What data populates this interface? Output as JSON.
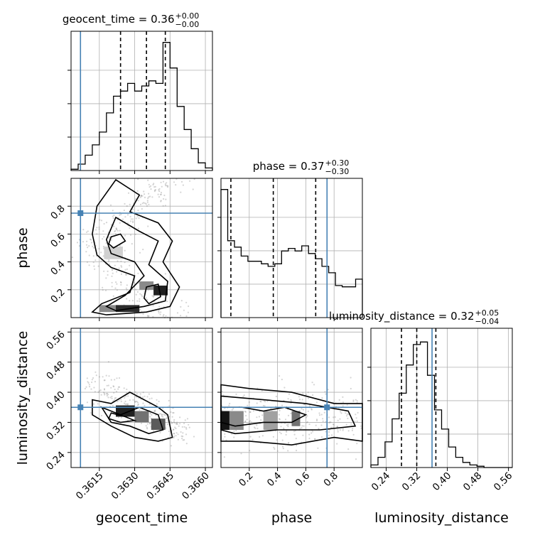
{
  "chart_data": {
    "type": "corner",
    "grid": true,
    "truth_color": "#4682b4",
    "parameters": [
      "geocent_time",
      "phase",
      "luminosity_distance"
    ],
    "truths": {
      "geocent_time": 0.3607,
      "phase": 0.75,
      "luminosity_distance": 0.36
    },
    "titles": {
      "geocent_time": {
        "base": "geocent_time = 0.36",
        "plus": "+0.00",
        "minus": "−0.00"
      },
      "phase": {
        "base": "phase = 0.37",
        "plus": "+0.30",
        "minus": "−0.30"
      },
      "luminosity_distance": {
        "base": "luminosity_distance = 0.32",
        "plus": "+0.05",
        "minus": "−0.04"
      }
    },
    "labels": {
      "geocent_time": "geocent_time",
      "phase": "phase",
      "luminosity_distance": "luminosity_distance"
    },
    "ranges": {
      "geocent_time": [
        0.3603,
        0.3663
      ],
      "phase": [
        0.0,
        1.0
      ],
      "luminosity_distance": [
        0.2,
        0.57
      ]
    },
    "ticks": {
      "geocent_time": [
        "0.3615",
        "0.3630",
        "0.3645",
        "0.3660"
      ],
      "phase": [
        "0.2",
        "0.4",
        "0.6",
        "0.8"
      ],
      "phase_x": [
        "0.2",
        "0.4",
        "0.6",
        "0.8"
      ],
      "luminosity_distance": [
        "0.24",
        "0.32",
        "0.40",
        "0.48",
        "0.56"
      ]
    },
    "quantiles": {
      "geocent_time": [
        0.3624,
        0.3635,
        0.3643
      ],
      "phase": [
        0.07,
        0.37,
        0.67
      ],
      "luminosity_distance": [
        0.28,
        0.32,
        0.37
      ]
    },
    "histograms": {
      "geocent_time": [
        0.01,
        0.05,
        0.12,
        0.2,
        0.3,
        0.45,
        0.58,
        0.62,
        0.68,
        0.62,
        0.66,
        0.7,
        0.68,
        1.0,
        0.8,
        0.5,
        0.32,
        0.17,
        0.06,
        0.02
      ],
      "phase": [
        1.0,
        0.6,
        0.55,
        0.48,
        0.44,
        0.44,
        0.42,
        0.4,
        0.42,
        0.52,
        0.54,
        0.52,
        0.56,
        0.5,
        0.46,
        0.4,
        0.35,
        0.25,
        0.24,
        0.24,
        0.3
      ],
      "luminosity_distance": [
        0.02,
        0.08,
        0.2,
        0.38,
        0.58,
        0.8,
        0.96,
        0.98,
        0.72,
        0.45,
        0.3,
        0.16,
        0.08,
        0.04,
        0.02,
        0.01,
        0.0,
        0.0,
        0.0,
        0.0
      ]
    },
    "contours_geocent_phase": [
      [
        [
          0.3618,
          0.02
        ],
        [
          0.3635,
          0.04
        ],
        [
          0.3645,
          0.08
        ],
        [
          0.3649,
          0.22
        ],
        [
          0.3642,
          0.4
        ],
        [
          0.3646,
          0.55
        ],
        [
          0.364,
          0.68
        ],
        [
          0.3628,
          0.76
        ],
        [
          0.3632,
          0.88
        ],
        [
          0.3622,
          0.99
        ],
        [
          0.3614,
          0.8
        ],
        [
          0.3612,
          0.6
        ],
        [
          0.3614,
          0.45
        ],
        [
          0.362,
          0.36
        ],
        [
          0.363,
          0.3
        ],
        [
          0.3628,
          0.18
        ],
        [
          0.3616,
          0.1
        ],
        [
          0.3612,
          0.04
        ]
      ],
      [
        [
          0.3622,
          0.05
        ],
        [
          0.3634,
          0.08
        ],
        [
          0.3643,
          0.12
        ],
        [
          0.3644,
          0.26
        ],
        [
          0.3636,
          0.38
        ],
        [
          0.364,
          0.55
        ],
        [
          0.3632,
          0.62
        ],
        [
          0.3622,
          0.72
        ],
        [
          0.3618,
          0.56
        ],
        [
          0.362,
          0.46
        ],
        [
          0.363,
          0.4
        ],
        [
          0.3634,
          0.3
        ],
        [
          0.3626,
          0.16
        ],
        [
          0.3618,
          0.08
        ]
      ],
      [
        [
          0.3636,
          0.1
        ],
        [
          0.3641,
          0.15
        ],
        [
          0.364,
          0.24
        ],
        [
          0.3635,
          0.22
        ],
        [
          0.3634,
          0.14
        ]
      ],
      [
        [
          0.3621,
          0.5
        ],
        [
          0.3626,
          0.55
        ],
        [
          0.3624,
          0.6
        ],
        [
          0.362,
          0.58
        ],
        [
          0.3619,
          0.53
        ]
      ]
    ],
    "contours_geocent_dist": [
      [
        [
          0.3612,
          0.38
        ],
        [
          0.362,
          0.37
        ],
        [
          0.3628,
          0.4
        ],
        [
          0.364,
          0.36
        ],
        [
          0.3644,
          0.34
        ],
        [
          0.3646,
          0.28
        ],
        [
          0.364,
          0.27
        ],
        [
          0.363,
          0.28
        ],
        [
          0.362,
          0.31
        ],
        [
          0.3612,
          0.34
        ]
      ],
      [
        [
          0.3616,
          0.36
        ],
        [
          0.3624,
          0.34
        ],
        [
          0.3632,
          0.36
        ],
        [
          0.364,
          0.34
        ],
        [
          0.3642,
          0.3
        ],
        [
          0.3636,
          0.29
        ],
        [
          0.3628,
          0.31
        ],
        [
          0.362,
          0.32
        ]
      ],
      [
        [
          0.362,
          0.345
        ],
        [
          0.3626,
          0.335
        ],
        [
          0.363,
          0.325
        ],
        [
          0.3624,
          0.32
        ],
        [
          0.3619,
          0.33
        ]
      ]
    ],
    "contours_phase_dist": [
      [
        [
          0.0,
          0.42
        ],
        [
          0.2,
          0.41
        ],
        [
          0.5,
          0.4
        ],
        [
          0.8,
          0.37
        ],
        [
          1.0,
          0.37
        ],
        [
          1.0,
          0.27
        ],
        [
          0.8,
          0.28
        ],
        [
          0.5,
          0.26
        ],
        [
          0.2,
          0.27
        ],
        [
          0.0,
          0.27
        ]
      ],
      [
        [
          0.0,
          0.39
        ],
        [
          0.3,
          0.38
        ],
        [
          0.6,
          0.37
        ],
        [
          0.9,
          0.35
        ],
        [
          0.95,
          0.31
        ],
        [
          0.7,
          0.3
        ],
        [
          0.4,
          0.3
        ],
        [
          0.1,
          0.29
        ],
        [
          0.0,
          0.3
        ]
      ],
      [
        [
          0.0,
          0.36
        ],
        [
          0.15,
          0.36
        ],
        [
          0.3,
          0.35
        ],
        [
          0.45,
          0.36
        ],
        [
          0.6,
          0.34
        ],
        [
          0.5,
          0.32
        ],
        [
          0.3,
          0.32
        ],
        [
          0.1,
          0.31
        ],
        [
          0.0,
          0.32
        ]
      ]
    ],
    "density_cells": [
      {
        "panel": "geocent_phase",
        "x": 0.3622,
        "y": 0.04,
        "w": 0.001,
        "h": 0.05,
        "v": 0.9
      },
      {
        "panel": "geocent_phase",
        "x": 0.3615,
        "y": 0.04,
        "w": 0.0007,
        "h": 0.05,
        "v": 0.5
      },
      {
        "panel": "geocent_phase",
        "x": 0.3638,
        "y": 0.16,
        "w": 0.0006,
        "h": 0.07,
        "v": 0.95
      },
      {
        "panel": "geocent_phase",
        "x": 0.3632,
        "y": 0.2,
        "w": 0.0006,
        "h": 0.06,
        "v": 0.5
      },
      {
        "panel": "geocent_phase",
        "x": 0.3617,
        "y": 0.42,
        "w": 0.0008,
        "h": 0.09,
        "v": 0.2
      },
      {
        "panel": "geocent_dist",
        "x": 0.3622,
        "y": 0.335,
        "w": 0.0008,
        "h": 0.03,
        "v": 0.95
      },
      {
        "panel": "geocent_dist",
        "x": 0.363,
        "y": 0.32,
        "w": 0.0006,
        "h": 0.03,
        "v": 0.6
      },
      {
        "panel": "geocent_dist",
        "x": 0.3637,
        "y": 0.3,
        "w": 0.0006,
        "h": 0.03,
        "v": 0.7
      },
      {
        "panel": "phase_dist",
        "x": 0.0,
        "y": 0.3,
        "w": 0.06,
        "h": 0.05,
        "v": 1.0
      },
      {
        "panel": "phase_dist",
        "x": 0.06,
        "y": 0.3,
        "w": 0.1,
        "h": 0.05,
        "v": 0.5
      },
      {
        "panel": "phase_dist",
        "x": 0.3,
        "y": 0.3,
        "w": 0.1,
        "h": 0.05,
        "v": 0.4
      },
      {
        "panel": "phase_dist",
        "x": 0.5,
        "y": 0.31,
        "w": 0.06,
        "h": 0.04,
        "v": 0.6
      }
    ]
  }
}
